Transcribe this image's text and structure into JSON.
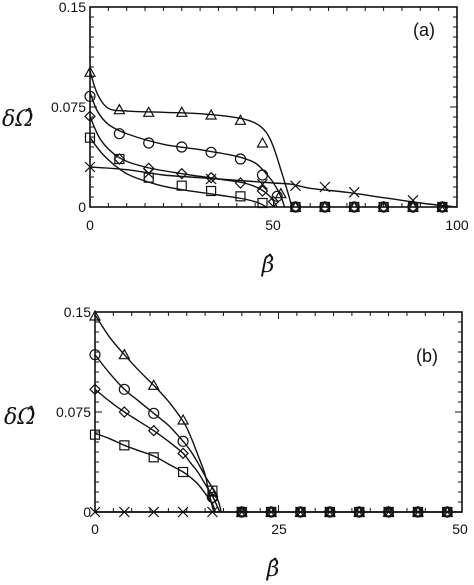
{
  "chart_data": [
    {
      "type": "line",
      "panel": "(a)",
      "xlabel": "β̂",
      "ylabel": "δΩ̂",
      "xlim": [
        0,
        100
      ],
      "ylim": [
        0,
        0.15
      ],
      "x_ticks": [
        "0",
        "50",
        "100"
      ],
      "y_ticks": [
        "0",
        "0.075",
        "0.15"
      ],
      "grid": false,
      "series": [
        {
          "marker": "triangle",
          "curve": [
            [
              0,
              0.102
            ],
            [
              2,
              0.085
            ],
            [
              5,
              0.074
            ],
            [
              10,
              0.072
            ],
            [
              20,
              0.071
            ],
            [
              30,
              0.07
            ],
            [
              40,
              0.067
            ],
            [
              45,
              0.063
            ],
            [
              48,
              0.056
            ],
            [
              50,
              0.045
            ],
            [
              52,
              0.028
            ],
            [
              54,
              0.01
            ],
            [
              55,
              0
            ]
          ],
          "points": [
            [
              0,
              0.101
            ],
            [
              8,
              0.073
            ],
            [
              16,
              0.071
            ],
            [
              25,
              0.071
            ],
            [
              33,
              0.069
            ],
            [
              41,
              0.065
            ],
            [
              47,
              0.048
            ],
            [
              52,
              0.01
            ],
            [
              56,
              0
            ],
            [
              64,
              0
            ],
            [
              72,
              0
            ],
            [
              80,
              0
            ],
            [
              88,
              0
            ],
            [
              96,
              0
            ]
          ]
        },
        {
          "marker": "circle",
          "curve": [
            [
              0,
              0.086
            ],
            [
              2,
              0.072
            ],
            [
              5,
              0.062
            ],
            [
              10,
              0.055
            ],
            [
              20,
              0.047
            ],
            [
              30,
              0.043
            ],
            [
              40,
              0.038
            ],
            [
              45,
              0.033
            ],
            [
              48,
              0.025
            ],
            [
              50,
              0.018
            ],
            [
              52,
              0.008
            ],
            [
              53,
              0
            ]
          ],
          "points": [
            [
              0,
              0.083
            ],
            [
              8,
              0.055
            ],
            [
              16,
              0.048
            ],
            [
              25,
              0.045
            ],
            [
              33,
              0.041
            ],
            [
              41,
              0.036
            ],
            [
              47,
              0.024
            ],
            [
              51,
              0.008
            ],
            [
              56,
              0
            ],
            [
              64,
              0
            ],
            [
              72,
              0
            ],
            [
              80,
              0
            ],
            [
              88,
              0
            ],
            [
              96,
              0
            ]
          ]
        },
        {
          "marker": "diamond",
          "curve": [
            [
              0,
              0.068
            ],
            [
              3,
              0.05
            ],
            [
              8,
              0.037
            ],
            [
              15,
              0.03
            ],
            [
              25,
              0.025
            ],
            [
              35,
              0.021
            ],
            [
              42,
              0.018
            ],
            [
              46,
              0.014
            ],
            [
              49,
              0.008
            ],
            [
              51,
              0
            ]
          ],
          "points": [
            [
              0,
              0.068
            ],
            [
              8,
              0.036
            ],
            [
              16,
              0.029
            ],
            [
              25,
              0.025
            ],
            [
              33,
              0.022
            ],
            [
              41,
              0.018
            ],
            [
              47,
              0.012
            ],
            [
              50,
              0.004
            ],
            [
              56,
              0
            ],
            [
              64,
              0
            ],
            [
              72,
              0
            ],
            [
              80,
              0
            ],
            [
              88,
              0
            ],
            [
              96,
              0
            ]
          ]
        },
        {
          "marker": "square",
          "curve": [
            [
              0,
              0.052
            ],
            [
              4,
              0.038
            ],
            [
              10,
              0.025
            ],
            [
              18,
              0.017
            ],
            [
              25,
              0.013
            ],
            [
              35,
              0.009
            ],
            [
              42,
              0.006
            ],
            [
              46,
              0.003
            ],
            [
              48,
              0
            ]
          ],
          "points": [
            [
              0,
              0.052
            ],
            [
              8,
              0.036
            ],
            [
              16,
              0.022
            ],
            [
              25,
              0.016
            ],
            [
              33,
              0.012
            ],
            [
              41,
              0.008
            ],
            [
              47,
              0.003
            ],
            [
              56,
              0
            ],
            [
              64,
              0
            ],
            [
              72,
              0
            ],
            [
              80,
              0
            ],
            [
              88,
              0
            ],
            [
              96,
              0
            ]
          ]
        },
        {
          "marker": "cross",
          "curve": [
            [
              0,
              0.03
            ],
            [
              10,
              0.028
            ],
            [
              20,
              0.024
            ],
            [
              30,
              0.022
            ],
            [
              40,
              0.02
            ],
            [
              50,
              0.018
            ],
            [
              55,
              0.017
            ],
            [
              60,
              0.014
            ],
            [
              70,
              0.011
            ],
            [
              80,
              0.007
            ],
            [
              90,
              0.003
            ],
            [
              100,
              0
            ]
          ],
          "points": [
            [
              0,
              0.03
            ],
            [
              16,
              0.025
            ],
            [
              33,
              0.021
            ],
            [
              47,
              0.017
            ],
            [
              56,
              0.016
            ],
            [
              64,
              0.015
            ],
            [
              72,
              0.011
            ],
            [
              88,
              0.005
            ],
            [
              96,
              0
            ]
          ]
        }
      ]
    },
    {
      "type": "line",
      "panel": "(b)",
      "xlabel": "β̂",
      "ylabel": "δΩ̂",
      "xlim": [
        0,
        50
      ],
      "ylim": [
        0,
        0.15
      ],
      "x_ticks": [
        "0",
        "25",
        "50"
      ],
      "y_ticks": [
        "0",
        "0.075",
        "0.15"
      ],
      "grid": false,
      "series": [
        {
          "marker": "triangle",
          "curve": [
            [
              0,
              0.148
            ],
            [
              2,
              0.131
            ],
            [
              4,
              0.118
            ],
            [
              6,
              0.106
            ],
            [
              8,
              0.095
            ],
            [
              10,
              0.083
            ],
            [
              12,
              0.068
            ],
            [
              13,
              0.057
            ],
            [
              14,
              0.043
            ],
            [
              15,
              0.028
            ],
            [
              15.5,
              0.015
            ],
            [
              16,
              0.004
            ],
            [
              16.2,
              0
            ]
          ],
          "points": [
            [
              0,
              0.147
            ],
            [
              4,
              0.118
            ],
            [
              8,
              0.095
            ],
            [
              12,
              0.069
            ],
            [
              16,
              0.015
            ],
            [
              20,
              0
            ],
            [
              24,
              0
            ],
            [
              28,
              0
            ],
            [
              32,
              0
            ],
            [
              36,
              0
            ],
            [
              40,
              0
            ],
            [
              44,
              0
            ],
            [
              48,
              0
            ]
          ]
        },
        {
          "marker": "circle",
          "curve": [
            [
              0,
              0.118
            ],
            [
              2,
              0.104
            ],
            [
              4,
              0.092
            ],
            [
              6,
              0.083
            ],
            [
              8,
              0.074
            ],
            [
              10,
              0.065
            ],
            [
              12,
              0.053
            ],
            [
              13,
              0.046
            ],
            [
              14,
              0.037
            ],
            [
              15,
              0.027
            ],
            [
              16,
              0.018
            ],
            [
              16.8,
              0.008
            ],
            [
              17.2,
              0
            ]
          ],
          "points": [
            [
              0,
              0.118
            ],
            [
              4,
              0.092
            ],
            [
              8,
              0.074
            ],
            [
              12,
              0.053
            ],
            [
              16,
              0.011
            ],
            [
              20,
              0
            ],
            [
              24,
              0
            ],
            [
              28,
              0
            ],
            [
              32,
              0
            ],
            [
              36,
              0
            ],
            [
              40,
              0
            ],
            [
              44,
              0
            ],
            [
              48,
              0
            ]
          ]
        },
        {
          "marker": "diamond",
          "curve": [
            [
              0,
              0.092
            ],
            [
              2,
              0.083
            ],
            [
              4,
              0.075
            ],
            [
              6,
              0.068
            ],
            [
              8,
              0.061
            ],
            [
              10,
              0.053
            ],
            [
              12,
              0.044
            ],
            [
              13,
              0.037
            ],
            [
              14,
              0.03
            ],
            [
              15,
              0.021
            ],
            [
              16,
              0.012
            ],
            [
              16.6,
              0.005
            ],
            [
              17,
              0
            ]
          ],
          "points": [
            [
              0,
              0.092
            ],
            [
              4,
              0.075
            ],
            [
              8,
              0.061
            ],
            [
              12,
              0.044
            ],
            [
              16,
              0.01
            ],
            [
              20,
              0
            ],
            [
              24,
              0
            ],
            [
              28,
              0
            ],
            [
              32,
              0
            ],
            [
              36,
              0
            ],
            [
              40,
              0
            ],
            [
              44,
              0
            ],
            [
              48,
              0
            ]
          ]
        },
        {
          "marker": "square",
          "curve": [
            [
              0,
              0.059
            ],
            [
              2,
              0.055
            ],
            [
              4,
              0.05
            ],
            [
              6,
              0.046
            ],
            [
              8,
              0.042
            ],
            [
              10,
              0.036
            ],
            [
              12,
              0.03
            ],
            [
              13,
              0.026
            ],
            [
              14,
              0.021
            ],
            [
              15,
              0.014
            ],
            [
              16,
              0.006
            ],
            [
              16.4,
              0
            ]
          ],
          "points": [
            [
              0,
              0.058
            ],
            [
              4,
              0.05
            ],
            [
              8,
              0.041
            ],
            [
              12,
              0.03
            ],
            [
              16,
              0.016
            ],
            [
              20,
              0
            ],
            [
              24,
              0
            ],
            [
              28,
              0
            ],
            [
              32,
              0
            ],
            [
              36,
              0
            ],
            [
              40,
              0
            ],
            [
              44,
              0
            ],
            [
              48,
              0
            ]
          ]
        },
        {
          "marker": "cross",
          "curve": [
            [
              0,
              0
            ],
            [
              50,
              0
            ]
          ],
          "points": [
            [
              0,
              0
            ],
            [
              4,
              0
            ],
            [
              8,
              0
            ],
            [
              12,
              0
            ],
            [
              16,
              0
            ],
            [
              20,
              0
            ],
            [
              24,
              0
            ],
            [
              28,
              0
            ],
            [
              32,
              0
            ],
            [
              36,
              0
            ],
            [
              40,
              0
            ],
            [
              44,
              0
            ],
            [
              48,
              0
            ]
          ]
        }
      ]
    }
  ]
}
